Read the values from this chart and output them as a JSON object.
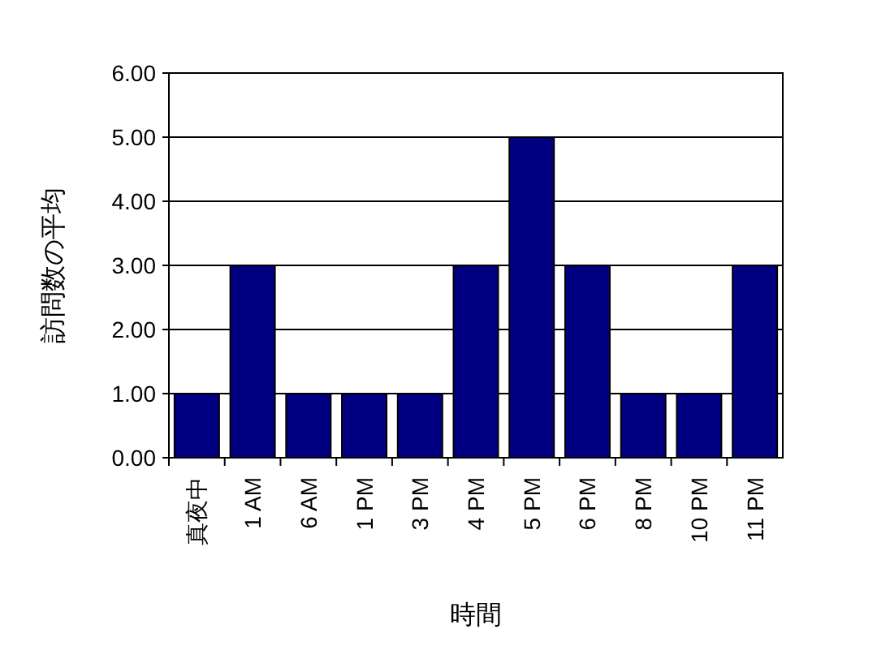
{
  "chart_data": {
    "type": "bar",
    "xlabel": "時間",
    "ylabel": "訪問数の平均",
    "categories": [
      "真夜中",
      "1 AM",
      "6 AM",
      "1 PM",
      "3 PM",
      "4 PM",
      "5 PM",
      "6 PM",
      "8 PM",
      "10 PM",
      "11 PM"
    ],
    "values": [
      1,
      3,
      1,
      1,
      1,
      3,
      5,
      3,
      1,
      1,
      3
    ],
    "color": "#000080",
    "ylim": [
      0,
      6
    ],
    "yticks": [
      {
        "value": 0,
        "label": "0.00"
      },
      {
        "value": 1,
        "label": "1.00"
      },
      {
        "value": 2,
        "label": "2.00"
      },
      {
        "value": 3,
        "label": "3.00"
      },
      {
        "value": 4,
        "label": "4.00"
      },
      {
        "value": 5,
        "label": "5.00"
      },
      {
        "value": 6,
        "label": "6.00"
      }
    ],
    "grid": "y"
  }
}
